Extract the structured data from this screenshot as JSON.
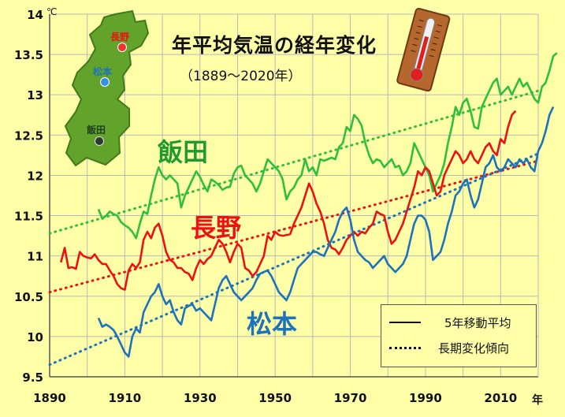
{
  "chart_data": {
    "type": "line",
    "title": "年平均気温の経年変化",
    "subtitle": "（1889〜2020年）",
    "ylabel_unit": "℃",
    "xlabel_unit": "年",
    "xlim": [
      1890,
      2020
    ],
    "ylim": [
      9.5,
      14
    ],
    "xticks": [
      "1890",
      "1910",
      "1930",
      "1950",
      "1970",
      "1990",
      "2010"
    ],
    "yticks": [
      "9.5",
      "10",
      "10.5",
      "11",
      "11.5",
      "12",
      "12.5",
      "13",
      "13.5",
      "14"
    ],
    "grid": true,
    "legend": {
      "solid": "5年移動平均",
      "dotted": "長期変化傾向"
    },
    "series": [
      {
        "name": "飯田",
        "color": "#2fbf3c",
        "label_color": "#1e9a2e",
        "start_year": 1903,
        "values": [
          11.58,
          11.46,
          11.5,
          11.55,
          11.52,
          11.5,
          11.42,
          11.38,
          11.35,
          11.3,
          11.22,
          11.4,
          11.55,
          11.52,
          11.75,
          11.95,
          12.1,
          12.0,
          11.95,
          12.0,
          11.95,
          11.9,
          11.6,
          11.75,
          11.85,
          11.95,
          12.05,
          11.98,
          11.88,
          11.8,
          11.95,
          11.92,
          11.88,
          11.82,
          11.85,
          11.86,
          12.02,
          12.1,
          12.12,
          12.0,
          11.95,
          11.9,
          11.8,
          11.9,
          12.05,
          12.2,
          12.15,
          12.1,
          12.05,
          11.95,
          11.7,
          11.8,
          11.85,
          11.95,
          12.0,
          12.2,
          12.05,
          12.1,
          12.0,
          12.2,
          12.18,
          12.2,
          12.22,
          12.2,
          12.35,
          12.4,
          12.6,
          12.55,
          12.75,
          12.7,
          12.62,
          12.4,
          12.25,
          12.15,
          12.2,
          12.18,
          12.1,
          12.15,
          12.2,
          12.1,
          12.12,
          12.0,
          12.05,
          12.15,
          12.4,
          12.3,
          12.2,
          12.1,
          12.0,
          11.8,
          11.9,
          12.0,
          12.15,
          12.4,
          12.6,
          12.85,
          12.75,
          12.9,
          12.95,
          12.8,
          12.6,
          12.58,
          12.85,
          12.95,
          13.05,
          13.15,
          13.2,
          13.0,
          13.05,
          13.1,
          13.0,
          13.1,
          13.2,
          13.1,
          13.15,
          13.05,
          12.95,
          12.9,
          13.1,
          13.15,
          13.3,
          13.48,
          13.52
        ]
      },
      {
        "name": "長野",
        "color": "#ee1111",
        "label_color": "#ee1111",
        "start_year": 1893,
        "values": [
          10.92,
          11.1,
          10.85,
          10.86,
          10.84,
          11.05,
          11.0,
          10.98,
          10.97,
          11.02,
          10.95,
          10.9,
          10.9,
          10.82,
          10.75,
          10.65,
          10.6,
          10.58,
          10.82,
          10.9,
          10.85,
          10.92,
          11.2,
          11.3,
          11.22,
          11.35,
          11.4,
          11.25,
          11.05,
          10.95,
          10.92,
          10.85,
          10.85,
          10.8,
          10.78,
          10.7,
          10.85,
          10.95,
          10.9,
          10.96,
          11.0,
          11.1,
          11.2,
          11.15,
          11.05,
          10.92,
          11.05,
          11.15,
          11.1,
          10.85,
          10.82,
          10.75,
          10.8,
          10.9,
          11.0,
          11.25,
          11.2,
          11.3,
          11.26,
          11.25,
          11.26,
          11.27,
          11.4,
          11.5,
          11.6,
          11.75,
          11.9,
          11.8,
          11.65,
          11.55,
          11.4,
          11.2,
          11.1,
          11.08,
          11.02,
          11.1,
          11.2,
          11.25,
          11.3,
          11.25,
          11.3,
          11.28,
          11.35,
          11.4,
          11.55,
          11.52,
          11.5,
          11.3,
          11.15,
          11.2,
          11.3,
          11.4,
          11.55,
          11.7,
          11.85,
          12.05,
          12.0,
          12.1,
          12.05,
          11.9,
          11.75,
          11.8,
          12.0,
          12.1,
          12.2,
          12.3,
          12.25,
          12.15,
          12.2,
          12.3,
          12.2,
          12.15,
          12.25,
          12.35,
          12.4,
          12.3,
          12.25,
          12.45,
          12.4,
          12.6,
          12.75,
          12.8
        ]
      },
      {
        "name": "松本",
        "color": "#1a73bb",
        "label_color": "#1a73bb",
        "start_year": 1903,
        "values": [
          10.23,
          10.12,
          10.15,
          10.12,
          10.08,
          10.0,
          9.9,
          9.8,
          9.75,
          10.0,
          10.1,
          10.05,
          10.3,
          10.4,
          10.5,
          10.55,
          10.65,
          10.5,
          10.4,
          10.45,
          10.3,
          10.2,
          10.15,
          10.35,
          10.38,
          10.4,
          10.32,
          10.35,
          10.3,
          10.25,
          10.2,
          10.4,
          10.6,
          10.7,
          10.75,
          10.65,
          10.55,
          10.5,
          10.45,
          10.5,
          10.55,
          10.6,
          10.7,
          10.78,
          10.8,
          10.82,
          10.75,
          10.65,
          10.55,
          10.5,
          10.45,
          10.55,
          10.7,
          10.85,
          10.9,
          10.95,
          11.0,
          11.05,
          11.05,
          11.02,
          11.0,
          11.1,
          11.2,
          11.3,
          11.45,
          11.55,
          11.6,
          11.45,
          11.2,
          11.05,
          11.0,
          10.95,
          10.92,
          10.85,
          10.9,
          10.95,
          11.0,
          10.9,
          10.85,
          10.8,
          10.85,
          10.9,
          11.0,
          11.2,
          11.4,
          11.5,
          11.5,
          11.45,
          11.3,
          10.95,
          11.0,
          11.05,
          11.2,
          11.4,
          11.55,
          11.75,
          11.8,
          11.9,
          11.95,
          11.75,
          11.6,
          11.7,
          11.9,
          12.1,
          12.15,
          12.25,
          12.1,
          12.05,
          12.1,
          12.2,
          12.15,
          12.1,
          12.2,
          12.15,
          12.2,
          12.1,
          12.05,
          12.3,
          12.4,
          12.55,
          12.75,
          12.85
        ]
      }
    ],
    "trends": [
      {
        "name": "飯田",
        "color": "#2fbf3c",
        "x": [
          1890,
          2020
        ],
        "y": [
          11.28,
          13.05
        ]
      },
      {
        "name": "長野",
        "color": "#ee1111",
        "x": [
          1890,
          2020
        ],
        "y": [
          10.55,
          12.18
        ]
      },
      {
        "name": "松本",
        "color": "#1a73bb",
        "x": [
          1890,
          2020
        ],
        "y": [
          9.65,
          12.27
        ]
      }
    ]
  },
  "map": {
    "cities": [
      {
        "name": "長野",
        "color": "#ee1111",
        "marker": "red-circle"
      },
      {
        "name": "松本",
        "color": "#1a73bb",
        "marker": "blue-circle"
      },
      {
        "name": "飯田",
        "color": "#1e5e1e",
        "marker": "dark-circle"
      }
    ],
    "fill": "#62a32c"
  },
  "thermometer": {
    "icon": "thermometer-icon"
  }
}
